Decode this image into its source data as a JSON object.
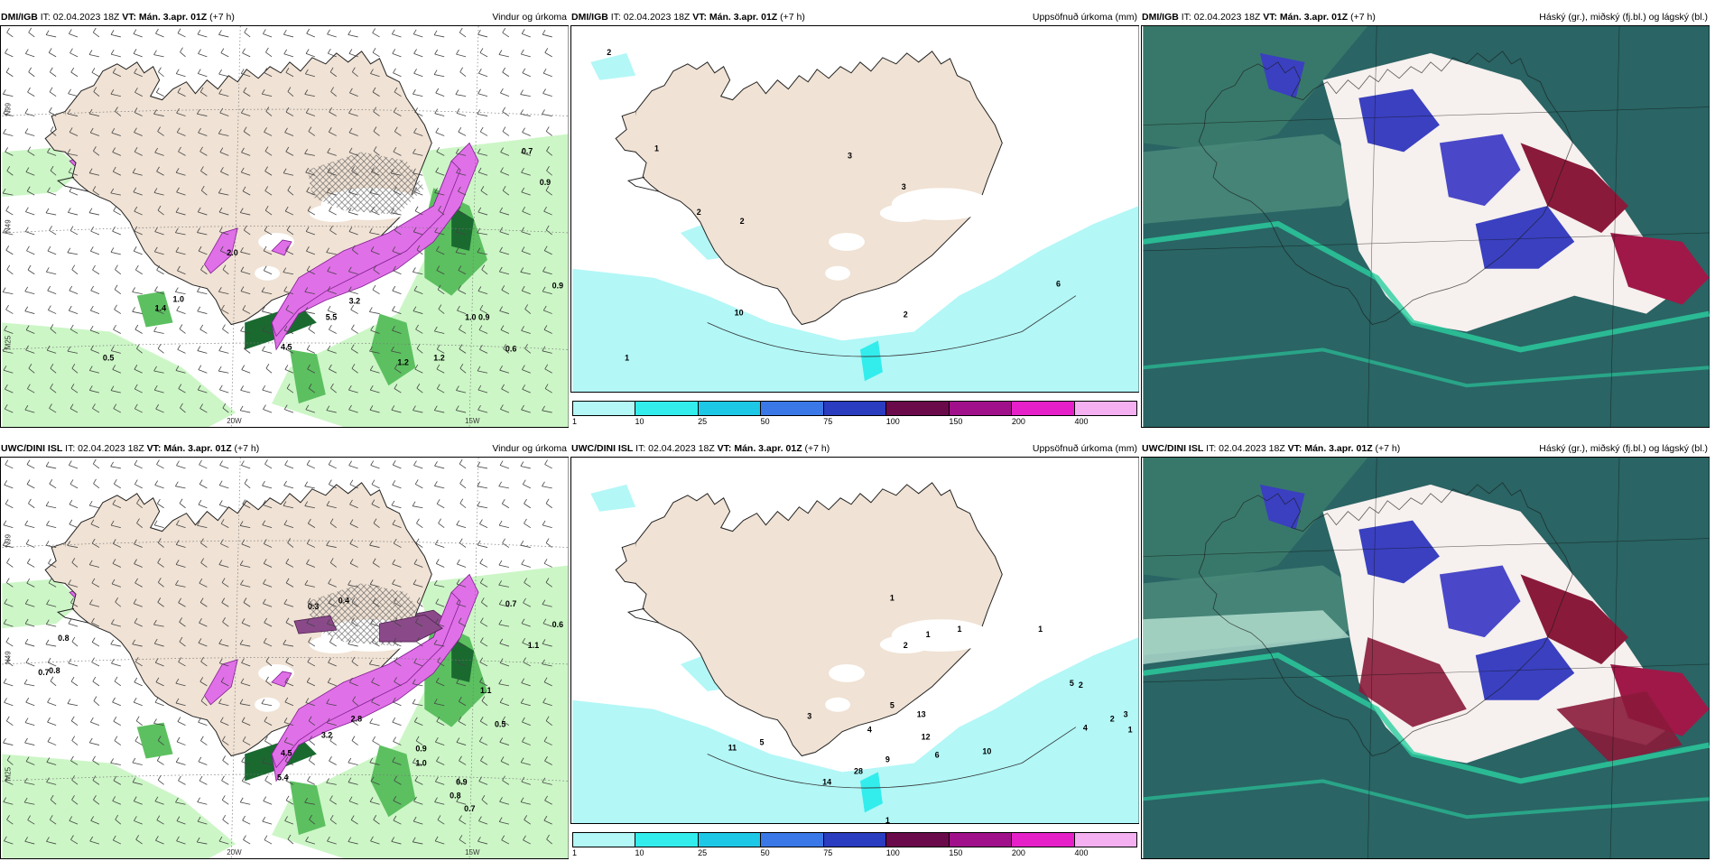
{
  "panels": [
    {
      "model": "DMI/IGB",
      "init": "IT: 02.04.2023 18Z",
      "vt": "VT: Mán. 3.apr. 01Z",
      "lead": "(+7 h)",
      "title": "Vindur og úrkoma"
    },
    {
      "model": "DMI/IGB",
      "init": "IT: 02.04.2023 18Z",
      "vt": "VT: Mán. 3.apr. 01Z",
      "lead": "(+7 h)",
      "title": "Uppsöfnuð úrkoma (mm)"
    },
    {
      "model": "DMI/IGB",
      "init": "IT: 02.04.2023 18Z",
      "vt": "VT: Mán. 3.apr. 01Z",
      "lead": "(+7 h)",
      "title": "Háský (gr.), miðský (fj.bl.) og lágský (bl.)"
    },
    {
      "model": "UWC/DINI ISL",
      "init": "IT: 02.04.2023 18Z",
      "vt": "VT: Mán. 3.apr. 01Z",
      "lead": "(+7 h)",
      "title": "Vindur og úrkoma"
    },
    {
      "model": "UWC/DINI ISL",
      "init": "IT: 02.04.2023 18Z",
      "vt": "VT: Mán. 3.apr. 01Z",
      "lead": "(+7 h)",
      "title": "Uppsöfnuð úrkoma (mm)"
    },
    {
      "model": "UWC/DINI ISL",
      "init": "IT: 02.04.2023 18Z",
      "vt": "VT: Mán. 3.apr. 01Z",
      "lead": "(+7 h)",
      "title": "Háský (gr.), miðský (fj.bl.) og lágský (bl.)"
    }
  ],
  "grid_labels": {
    "lat66": "N99",
    "lat65": "N49",
    "lat64": "M25",
    "lon20": "20W",
    "lon15": "15W"
  },
  "colorbar": {
    "labels": [
      "1",
      "10",
      "25",
      "50",
      "75",
      "100",
      "150",
      "200",
      "400"
    ],
    "colors": [
      "#b3f7f7",
      "#33eded",
      "#1cc8e6",
      "#3a78e8",
      "#2a3cc0",
      "#6a0a4a",
      "#a0108a",
      "#e620c8",
      "#f4b0f0"
    ]
  },
  "precip_labels_top": [
    "0.7",
    "0.9",
    "1.0",
    "1.4",
    "0.5",
    "3.2",
    "5.5",
    "4.5",
    "1.0",
    "0.9",
    "0.6",
    "1.2",
    "1.2",
    "0.9",
    "2.0"
  ],
  "precip_labels_bottom": [
    "0.8",
    "0.7",
    "0.8",
    "0.7",
    "0.6",
    "0.5",
    "1.1",
    "1.1",
    "0.9",
    "1.0",
    "0.9",
    "0.8",
    "0.7",
    "0.3",
    "0.4",
    "4.5",
    "3.2",
    "2.8",
    "5.4"
  ],
  "accum_labels_top": [
    "2",
    "1",
    "3",
    "3",
    "2",
    "2",
    "10",
    "1",
    "6",
    "2"
  ],
  "accum_labels_bottom": [
    "1",
    "2",
    "1",
    "1",
    "1",
    "11",
    "5",
    "3",
    "4",
    "5",
    "9",
    "12",
    "13",
    "6",
    "10",
    "2",
    "3",
    "4",
    "1",
    "5",
    "2",
    "14",
    "28",
    "1"
  ],
  "colors": {
    "land": "#f0e2d4",
    "sea": "#ffffff",
    "green_light": "#c6f5c0",
    "green_mid": "#5cc060",
    "green_dark": "#1a6a30",
    "magenta": "#e070e8",
    "cloud_sea": "#245858"
  }
}
